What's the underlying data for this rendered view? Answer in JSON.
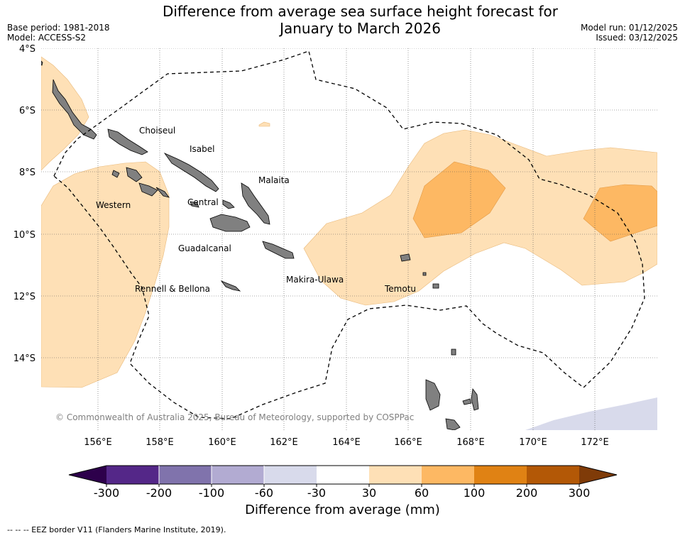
{
  "header": {
    "title_line1": "Difference from average sea surface height forecast for",
    "title_line2": "January to March 2026",
    "base_period": "Base period: 1981-2018",
    "model": "Model: ACCESS-S2",
    "model_run": "Model run: 01/12/2025",
    "issued": "Issued: 03/12/2025"
  },
  "map": {
    "lat_labels": [
      "4°S",
      "6°S",
      "8°S",
      "10°S",
      "12°S",
      "14°S"
    ],
    "lon_labels": [
      "156°E",
      "158°E",
      "160°E",
      "162°E",
      "164°E",
      "166°E",
      "168°E",
      "170°E",
      "172°E"
    ],
    "places": [
      "Choiseul",
      "Isabel",
      "Malaita",
      "Western",
      "Central",
      "Guadalcanal",
      "Makira-Ulawa",
      "Rennell & Bellona",
      "Temotu"
    ],
    "copyright": "© Commonwealth of Australia 2025, Bureau of Meteorology, supported by COSPPac"
  },
  "colorbar": {
    "title": "Difference from average (mm)",
    "ticks": [
      "-300",
      "-200",
      "-100",
      "-60",
      "-30",
      "30",
      "60",
      "100",
      "200",
      "300"
    ],
    "colors": {
      "extend_low": "#2d004b",
      "c1": "#542788",
      "c2": "#8073ac",
      "c3": "#b2abd2",
      "c4": "#d8daeb",
      "c5": "#ffffff",
      "c6": "#fee0b6",
      "c7": "#fdb863",
      "c8": "#e08214",
      "c9": "#b35806",
      "extend_high": "#7f3b08"
    }
  },
  "footnote": "--  --  -- EEZ border V11 (Flanders Marine Institute, 2019)."
}
